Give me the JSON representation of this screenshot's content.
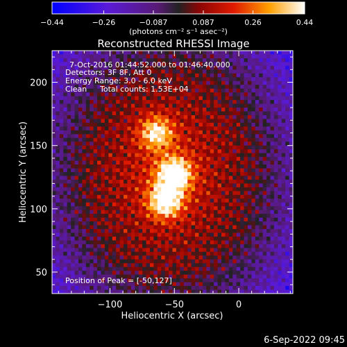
{
  "chart_data": {
    "type": "heatmap",
    "title": "Reconstructed RHESSI Image",
    "xlabel": "Heliocentric X (arcsec)",
    "ylabel": "Heliocentric Y (arcsec)",
    "xlim": [
      -145,
      42
    ],
    "ylim": [
      33,
      225
    ],
    "x_ticks": [
      -100,
      -50,
      0
    ],
    "x_tick_labels": [
      "−100",
      "−50",
      "0"
    ],
    "y_ticks": [
      50,
      100,
      150,
      200
    ],
    "y_tick_labels": [
      "50",
      "100",
      "150",
      "200"
    ],
    "colorbar": {
      "range": [
        -0.44,
        0.44
      ],
      "ticks": [
        -0.44,
        -0.26,
        -0.087,
        0.087,
        0.26,
        0.44
      ],
      "tick_labels": [
        "−0.44",
        "−0.26",
        "−0.087",
        "0.087",
        "0.26",
        "0.44"
      ],
      "units": "(photons cm⁻² s⁻¹ asec⁻²)"
    },
    "sources": [
      {
        "x": -50,
        "y": 127,
        "peak": 0.44
      },
      {
        "x": -57,
        "y": 106,
        "peak": 0.4
      },
      {
        "x": -64,
        "y": 160,
        "peak": 0.32
      }
    ],
    "annotations": {
      "time_range": "7-Oct-2016 01:44:52.000 to 01:46:40.000",
      "detectors": "Detectors: 3F 8F, Att 0",
      "energy": "Energy Range: 3.0 - 6.0 keV",
      "clean": "Clean",
      "counts": "Total counts: 1.53E+04",
      "peak": "Position of Peak = [-50,127]"
    },
    "footer_date": "6-Sep-2022 09:45"
  }
}
